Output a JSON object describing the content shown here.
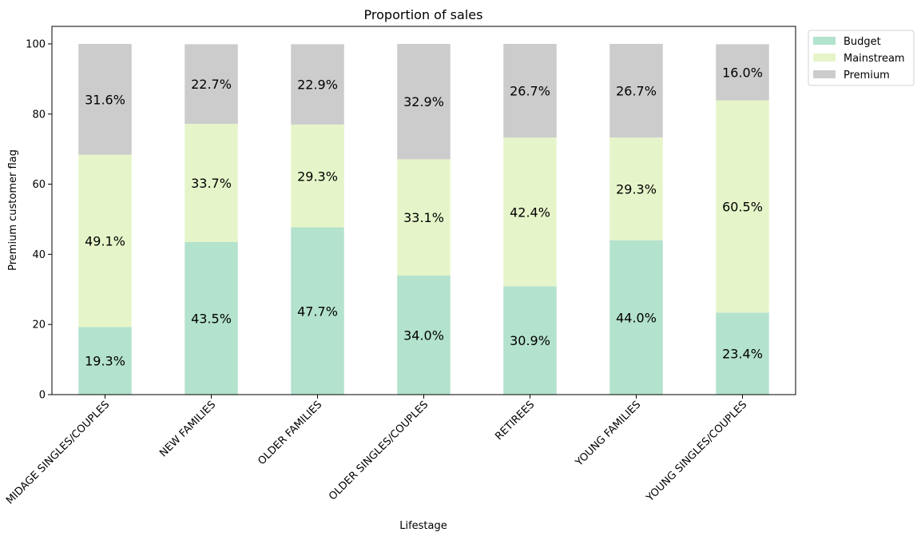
{
  "chart_data": {
    "type": "bar",
    "stacked": true,
    "title": "Proportion of sales",
    "xlabel": "Lifestage",
    "ylabel": "Premium customer flag",
    "ylim": [
      0,
      105
    ],
    "yticks": [
      0,
      20,
      40,
      60,
      80,
      100
    ],
    "grid": false,
    "legend_position": "outside top-right",
    "categories": [
      "MIDAGE SINGLES/COUPLES",
      "NEW FAMILIES",
      "OLDER FAMILIES",
      "OLDER SINGLES/COUPLES",
      "RETIREES",
      "YOUNG FAMILIES",
      "YOUNG SINGLES/COUPLES"
    ],
    "series": [
      {
        "name": "Budget",
        "color": "#b3e2cd",
        "values": [
          19.3,
          43.5,
          47.7,
          34.0,
          30.9,
          44.0,
          23.4
        ]
      },
      {
        "name": "Mainstream",
        "color": "#e6f5c9",
        "values": [
          49.1,
          33.7,
          29.3,
          33.1,
          42.4,
          29.3,
          60.5
        ]
      },
      {
        "name": "Premium",
        "color": "#cccccc",
        "values": [
          31.6,
          22.7,
          22.9,
          32.9,
          26.7,
          26.7,
          16.0
        ]
      }
    ],
    "label_format": "{v}%"
  }
}
